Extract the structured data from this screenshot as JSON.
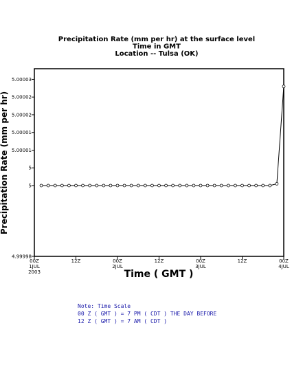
{
  "chart_data": {
    "type": "line",
    "title_lines": [
      "Precipitation Rate (mm per hr) at the surface level",
      "Time in GMT",
      "Location -- Tulsa (OK)"
    ],
    "xlabel": "Time ( GMT )",
    "ylabel": "Precipitation Rate (mm per hr)",
    "y_ticks": [
      {
        "value": 4.99998,
        "label": "4.99998"
      },
      {
        "value": 5.0,
        "label": "5"
      },
      {
        "value": 5.000005,
        "label": "5"
      },
      {
        "value": 5.00001,
        "label": "5.00001"
      },
      {
        "value": 5.000015,
        "label": "5.00001"
      },
      {
        "value": 5.00002,
        "label": "5.00002"
      },
      {
        "value": 5.000025,
        "label": "5.00002"
      },
      {
        "value": 5.00003,
        "label": "5.00003"
      }
    ],
    "x_ticks": [
      {
        "hour": 0,
        "label": "00Z",
        "sub": "1JUL",
        "sub2": "2003"
      },
      {
        "hour": 12,
        "label": "12Z",
        "sub": "",
        "sub2": ""
      },
      {
        "hour": 24,
        "label": "00Z",
        "sub": "2JUL",
        "sub2": ""
      },
      {
        "hour": 36,
        "label": "12Z",
        "sub": "",
        "sub2": ""
      },
      {
        "hour": 48,
        "label": "00Z",
        "sub": "3JUL",
        "sub2": ""
      },
      {
        "hour": 60,
        "label": "12Z",
        "sub": "",
        "sub2": ""
      },
      {
        "hour": 72,
        "label": "00Z",
        "sub": "4JUL",
        "sub2": ""
      }
    ],
    "xlim": [
      0,
      72
    ],
    "ylim": [
      4.99998,
      5.000033
    ],
    "series": [
      {
        "x": [
          2,
          4,
          6,
          8,
          10,
          12,
          14,
          16,
          18,
          20,
          22,
          24,
          26,
          28,
          30,
          32,
          34,
          36,
          38,
          40,
          42,
          44,
          46,
          48,
          50,
          52,
          54,
          56,
          58,
          60,
          62,
          64,
          66,
          68,
          70,
          72
        ],
        "y": [
          5.0,
          5.0,
          5.0,
          5.0,
          5.0,
          5.0,
          5.0,
          5.0,
          5.0,
          5.0,
          5.0,
          5.0,
          5.0,
          5.0,
          5.0,
          5.0,
          5.0,
          5.0,
          5.0,
          5.0,
          5.0,
          5.0,
          5.0,
          5.0,
          5.0,
          5.0,
          5.0,
          5.0,
          5.0,
          5.0,
          5.0,
          5.0,
          5.0,
          5.0,
          5.0000005,
          5.000028
        ]
      }
    ]
  },
  "note": {
    "lines": [
      "Note: Time Scale",
      "00 Z ( GMT ) = 7 PM ( CDT ) THE DAY BEFORE",
      "12 Z ( GMT ) = 7 AM ( CDT )"
    ]
  }
}
